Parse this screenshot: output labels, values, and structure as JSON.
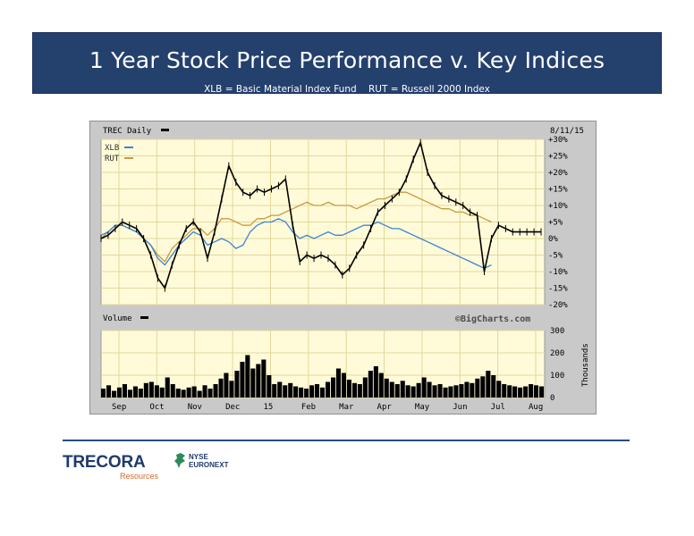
{
  "slide": {
    "title": "1 Year Stock Price Performance v. Key Indices",
    "subtitle": "XLB = Basic Material Index Fund    RUT = Russell 2000 Index"
  },
  "chart_data": {
    "type": "line",
    "header_left": "TREC Daily",
    "header_right": "8/11/15",
    "legend": [
      {
        "name": "XLB",
        "color": "#3a86d6"
      },
      {
        "name": "RUT",
        "color": "#c99a40"
      }
    ],
    "watermark": "©BigCharts.com",
    "y_ticks": [
      "+30%",
      "+25%",
      "+20%",
      "+15%",
      "+10%",
      "+5%",
      "0%",
      "-5%",
      "-10%",
      "-15%",
      "-20%"
    ],
    "ylim": [
      -20,
      30
    ],
    "x_ticks": [
      "Sep",
      "Oct",
      "Nov",
      "Dec",
      "15",
      "Feb",
      "Mar",
      "Apr",
      "May",
      "Jun",
      "Jul",
      "Aug"
    ],
    "series": [
      {
        "name": "TREC",
        "color": "#000000",
        "x": [
          0,
          4,
          8,
          12,
          16,
          20,
          24,
          28,
          32,
          36,
          40,
          44,
          48,
          52,
          56,
          60,
          64,
          68,
          72,
          76,
          80,
          84,
          88,
          92,
          96,
          100,
          104,
          108,
          112,
          116,
          120,
          124,
          128,
          132,
          136,
          140,
          144,
          148,
          152,
          156,
          160,
          164,
          168,
          172,
          176,
          180,
          184,
          188,
          192,
          196,
          200,
          204,
          208,
          212,
          216,
          220,
          224,
          228,
          232,
          236,
          240,
          244,
          248
        ],
        "y": [
          0,
          1,
          3,
          5,
          4,
          3,
          0,
          -5,
          -12,
          -15,
          -8,
          -2,
          3,
          5,
          2,
          -6,
          2,
          12,
          22,
          17,
          14,
          13,
          15,
          14,
          15,
          16,
          18,
          4,
          -7,
          -5,
          -6,
          -5,
          -6,
          -8,
          -11,
          -9,
          -5,
          -2,
          3,
          8,
          10,
          12,
          14,
          18,
          24,
          29,
          20,
          16,
          13,
          12,
          11,
          10,
          8,
          7,
          -10,
          0,
          4,
          3,
          2,
          2,
          2,
          2,
          2
        ]
      },
      {
        "name": "XLB",
        "color": "#3a86d6",
        "x": [
          0,
          4,
          8,
          12,
          16,
          20,
          24,
          28,
          32,
          36,
          40,
          44,
          48,
          52,
          56,
          60,
          64,
          68,
          72,
          76,
          80,
          84,
          88,
          92,
          96,
          100,
          104,
          108,
          112,
          116,
          120,
          124,
          128,
          132,
          136,
          140,
          144,
          148,
          152,
          156,
          160,
          164,
          168,
          172,
          176,
          180,
          184,
          188,
          192,
          196,
          200,
          204,
          208,
          212,
          216,
          220
        ],
        "y": [
          1,
          2,
          4,
          4,
          3,
          2,
          0,
          -2,
          -6,
          -8,
          -5,
          -2,
          0,
          2,
          1,
          -2,
          -1,
          0,
          -1,
          -3,
          -2,
          2,
          4,
          5,
          5,
          6,
          5,
          2,
          0,
          1,
          0,
          1,
          2,
          1,
          1,
          2,
          3,
          4,
          4,
          5,
          4,
          3,
          3,
          2,
          1,
          0,
          -1,
          -2,
          -3,
          -4,
          -5,
          -6,
          -7,
          -8,
          -9,
          -8
        ],
        "draw_to": 220
      },
      {
        "name": "RUT",
        "color": "#c99a40",
        "x": [
          0,
          4,
          8,
          12,
          16,
          20,
          24,
          28,
          32,
          36,
          40,
          44,
          48,
          52,
          56,
          60,
          64,
          68,
          72,
          76,
          80,
          84,
          88,
          92,
          96,
          100,
          104,
          108,
          112,
          116,
          120,
          124,
          128,
          132,
          136,
          140,
          144,
          148,
          152,
          156,
          160,
          164,
          168,
          172,
          176,
          180,
          184,
          188,
          192,
          196,
          200,
          204,
          208,
          212,
          216,
          220
        ],
        "y": [
          0,
          2,
          4,
          4,
          3,
          2,
          0,
          -2,
          -5,
          -7,
          -3,
          -1,
          1,
          3,
          3,
          1,
          3,
          6,
          6,
          5,
          4,
          4,
          6,
          6,
          7,
          7,
          8,
          9,
          10,
          11,
          10,
          10,
          11,
          10,
          10,
          10,
          9,
          10,
          11,
          12,
          12,
          13,
          14,
          14,
          13,
          12,
          11,
          10,
          9,
          9,
          8,
          8,
          7,
          7,
          6,
          5
        ]
      }
    ],
    "volume": {
      "label": "Volume",
      "y_ticks": [
        "300",
        "200",
        "100",
        "0"
      ],
      "ylim": [
        0,
        300
      ],
      "unit_label": "Thousands",
      "values": [
        40,
        55,
        30,
        45,
        60,
        35,
        50,
        40,
        65,
        70,
        55,
        45,
        90,
        60,
        40,
        35,
        45,
        50,
        30,
        55,
        40,
        60,
        85,
        110,
        75,
        120,
        160,
        190,
        130,
        150,
        170,
        100,
        60,
        70,
        55,
        65,
        50,
        45,
        40,
        55,
        60,
        45,
        70,
        90,
        130,
        110,
        80,
        65,
        60,
        90,
        120,
        140,
        110,
        85,
        70,
        60,
        75,
        55,
        50,
        65,
        90,
        70,
        55,
        60,
        45,
        50,
        55,
        60,
        70,
        65,
        85,
        95,
        120,
        100,
        75,
        60,
        55,
        50,
        45,
        50,
        60,
        55,
        50
      ]
    }
  },
  "branding": {
    "company": "TRECORA",
    "company_sub": "Resources",
    "exchange_line1": "NYSE",
    "exchange_line2": "EURONEXT"
  }
}
